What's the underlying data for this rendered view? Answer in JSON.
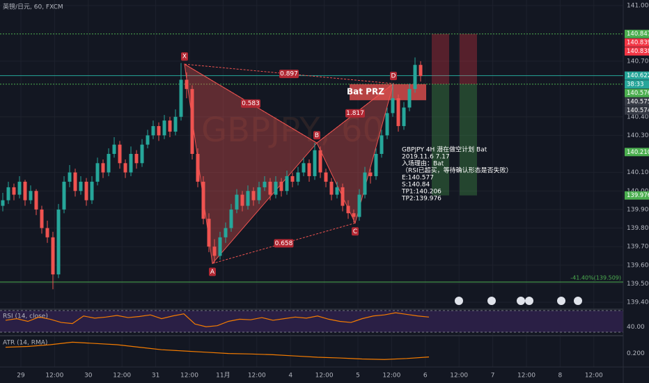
{
  "chart_data": {
    "type": "candlestick",
    "title": "英镑/日元, 60, FXCM",
    "watermark": "GBPJPY, 60",
    "up_color": "#26a69a",
    "down_color": "#ef5350",
    "ylim": [
      139.4,
      141.0
    ],
    "yticks": [
      {
        "value": 141.0,
        "label": "141.000"
      },
      {
        "value": 140.7,
        "label": "140.700"
      },
      {
        "value": 140.4,
        "label": "140.400"
      },
      {
        "value": 140.3,
        "label": "140.300"
      },
      {
        "value": 140.1,
        "label": "140.100"
      },
      {
        "value": 140.0,
        "label": "140.000"
      },
      {
        "value": 139.9,
        "label": "139.900"
      },
      {
        "value": 139.8,
        "label": "139.800"
      },
      {
        "value": 139.7,
        "label": "139.700"
      },
      {
        "value": 139.6,
        "label": "139.600"
      },
      {
        "value": 139.5,
        "label": "139.500"
      },
      {
        "value": 139.4,
        "label": "139.400"
      }
    ],
    "categories": [
      "29",
      "12:00",
      "30",
      "12:00",
      "31",
      "12:00",
      "11月",
      "12:00",
      "4",
      "12:00",
      "5",
      "12:00",
      "6",
      "12:00",
      "7",
      "12:00",
      "8",
      "12:00"
    ],
    "candles": [
      [
        139.92,
        139.99,
        139.89,
        139.95
      ],
      [
        139.95,
        140.05,
        139.93,
        140.02
      ],
      [
        140.02,
        140.04,
        139.95,
        139.98
      ],
      [
        139.98,
        140.08,
        139.96,
        140.05
      ],
      [
        140.05,
        140.06,
        139.92,
        139.95
      ],
      [
        139.95,
        140.03,
        139.93,
        140.0
      ],
      [
        140.0,
        140.01,
        139.87,
        139.9
      ],
      [
        139.9,
        139.92,
        139.77,
        139.8
      ],
      [
        139.8,
        139.84,
        139.72,
        139.75
      ],
      [
        139.75,
        139.78,
        139.47,
        139.55
      ],
      [
        139.55,
        139.93,
        139.53,
        139.9
      ],
      [
        139.9,
        140.08,
        139.88,
        140.05
      ],
      [
        140.05,
        140.14,
        140.02,
        140.1
      ],
      [
        140.1,
        140.12,
        139.97,
        140.0
      ],
      [
        140.0,
        140.08,
        139.98,
        140.05
      ],
      [
        140.05,
        140.07,
        139.92,
        139.95
      ],
      [
        139.95,
        140.08,
        139.93,
        140.05
      ],
      [
        140.05,
        140.18,
        140.03,
        140.15
      ],
      [
        140.15,
        140.17,
        140.07,
        140.1
      ],
      [
        140.1,
        140.23,
        140.08,
        140.2
      ],
      [
        140.2,
        140.29,
        140.18,
        140.25
      ],
      [
        140.25,
        140.27,
        140.12,
        140.15
      ],
      [
        140.15,
        140.17,
        140.07,
        140.1
      ],
      [
        140.1,
        140.24,
        140.08,
        140.2
      ],
      [
        140.2,
        140.22,
        140.12,
        140.15
      ],
      [
        140.15,
        140.28,
        140.13,
        140.25
      ],
      [
        140.25,
        140.33,
        140.23,
        140.3
      ],
      [
        140.3,
        140.38,
        140.28,
        140.35
      ],
      [
        140.35,
        140.37,
        140.27,
        140.3
      ],
      [
        140.3,
        140.41,
        140.28,
        140.38
      ],
      [
        140.38,
        140.4,
        140.29,
        140.32
      ],
      [
        140.32,
        140.44,
        140.3,
        140.4
      ],
      [
        140.4,
        140.69,
        140.38,
        140.6
      ],
      [
        140.6,
        140.64,
        140.5,
        140.55
      ],
      [
        140.55,
        140.57,
        140.17,
        140.2
      ],
      [
        140.2,
        140.23,
        140.02,
        140.05
      ],
      [
        140.05,
        140.08,
        139.82,
        139.85
      ],
      [
        139.85,
        139.88,
        139.67,
        139.7
      ],
      [
        139.7,
        139.74,
        139.61,
        139.65
      ],
      [
        139.65,
        139.78,
        139.63,
        139.75
      ],
      [
        139.75,
        139.83,
        139.72,
        139.8
      ],
      [
        139.8,
        139.93,
        139.78,
        139.9
      ],
      [
        139.9,
        140.01,
        139.88,
        139.98
      ],
      [
        139.98,
        140.0,
        139.89,
        139.92
      ],
      [
        139.92,
        140.03,
        139.9,
        140.0
      ],
      [
        140.0,
        140.02,
        139.92,
        139.95
      ],
      [
        139.95,
        140.05,
        139.93,
        140.02
      ],
      [
        140.02,
        140.08,
        140.0,
        140.05
      ],
      [
        140.05,
        140.07,
        139.95,
        139.98
      ],
      [
        139.98,
        140.08,
        139.96,
        140.05
      ],
      [
        140.05,
        140.07,
        139.97,
        140.0
      ],
      [
        140.0,
        140.11,
        139.98,
        140.08
      ],
      [
        140.08,
        140.1,
        140.02,
        140.05
      ],
      [
        140.05,
        140.13,
        140.03,
        140.1
      ],
      [
        140.1,
        140.18,
        140.08,
        140.15
      ],
      [
        140.15,
        140.17,
        140.05,
        140.08
      ],
      [
        140.08,
        140.26,
        140.06,
        140.22
      ],
      [
        140.22,
        140.24,
        140.07,
        140.1
      ],
      [
        140.1,
        140.12,
        140.02,
        140.05
      ],
      [
        140.05,
        140.07,
        139.95,
        139.98
      ],
      [
        139.98,
        140.05,
        139.96,
        140.02
      ],
      [
        140.02,
        140.04,
        139.89,
        139.92
      ],
      [
        139.92,
        139.95,
        139.85,
        139.88
      ],
      [
        139.88,
        139.9,
        139.83,
        139.86
      ],
      [
        139.86,
        140.01,
        139.84,
        139.98
      ],
      [
        139.98,
        140.13,
        139.96,
        140.1
      ],
      [
        140.1,
        140.12,
        140.04,
        140.08
      ],
      [
        140.08,
        140.23,
        140.06,
        140.2
      ],
      [
        140.2,
        140.33,
        140.18,
        140.3
      ],
      [
        140.3,
        140.45,
        140.28,
        140.42
      ],
      [
        140.42,
        140.58,
        140.4,
        140.5
      ],
      [
        140.5,
        140.52,
        140.32,
        140.35
      ],
      [
        140.35,
        140.48,
        140.33,
        140.45
      ],
      [
        140.45,
        140.58,
        140.43,
        140.55
      ],
      [
        140.55,
        140.72,
        140.53,
        140.68
      ],
      [
        140.68,
        140.7,
        140.59,
        140.62
      ]
    ],
    "price_labels": [
      {
        "value": 140.847,
        "label": "140.847",
        "color": "#4caf50"
      },
      {
        "value": 140.839,
        "label": "140.839",
        "color": "#f23645"
      },
      {
        "value": 140.838,
        "label": "140.838",
        "color": "#f23645"
      },
      {
        "value": 140.622,
        "label": "140.622",
        "color": "#26a69a"
      },
      {
        "value": 140.576,
        "label": "140.576",
        "color": "#4caf50"
      },
      {
        "value": 140.575,
        "label": "140.575",
        "color": "#363a45"
      },
      {
        "value": 140.574,
        "label": "140.574",
        "color": "#363a45"
      },
      {
        "value": 140.21,
        "label": "140.210",
        "color": "#4caf50"
      },
      {
        "value": 139.976,
        "label": "139.976",
        "color": "#4caf50"
      }
    ],
    "countdown": "38:33",
    "fib_line": {
      "value": 139.509,
      "label": "-41.40%(139.509)"
    },
    "pattern": {
      "name": "Bat  PRZ",
      "points": [
        {
          "label": "X",
          "price": 140.684
        },
        {
          "label": "A",
          "price": 139.609
        },
        {
          "label": "B",
          "price": 140.259
        },
        {
          "label": "C",
          "price": 139.827
        },
        {
          "label": "D",
          "price": 140.579
        }
      ],
      "ratios": [
        "0.583",
        "0.897",
        "1.817",
        "0.658"
      ]
    },
    "note": [
      "GBPJPY 4H 潜在做空计划 Bat",
      "2019.11.6 7.17",
      "入场理由：Bat",
      "（RSI已超买，等待确认形态是否失败）",
      "E:140.577",
      "S:140.84",
      "TP1:140.206",
      "TP2:139.976"
    ],
    "rsi": {
      "name": "RSI (14, close)",
      "ylim": [
        30,
        70
      ],
      "yticks": [
        {
          "value": 40,
          "label": "40.00"
        }
      ],
      "values": [
        52,
        55,
        50,
        58,
        54,
        48,
        46,
        60,
        56,
        58,
        61,
        57,
        59,
        62,
        55,
        60,
        64,
        45,
        40,
        42,
        50,
        54,
        53,
        57,
        52,
        55,
        58,
        56,
        60,
        54,
        50,
        48,
        55,
        60,
        62,
        66,
        63,
        60,
        58
      ]
    },
    "atr": {
      "name": "ATR (14, RMA)",
      "ylim": [
        0.16,
        0.26
      ],
      "yticks": [
        {
          "value": 0.2,
          "label": "0.200"
        }
      ],
      "values": [
        0.225,
        0.228,
        0.235,
        0.245,
        0.24,
        0.235,
        0.225,
        0.215,
        0.21,
        0.205,
        0.2,
        0.198,
        0.195,
        0.19,
        0.185,
        0.182,
        0.178,
        0.176,
        0.18,
        0.186
      ]
    }
  }
}
